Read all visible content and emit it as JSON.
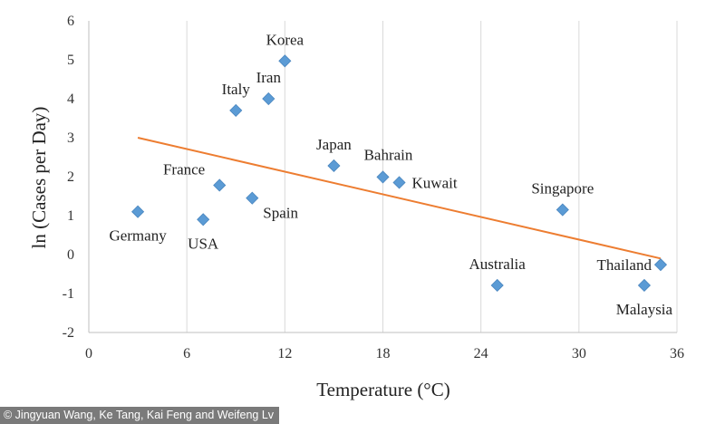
{
  "chart_data": {
    "type": "scatter",
    "title": "",
    "xlabel": "Temperature (°C)",
    "ylabel": "ln (Cases per Day)",
    "xlim": [
      0,
      36
    ],
    "ylim": [
      -2,
      6
    ],
    "xticks": [
      0,
      6,
      12,
      18,
      24,
      30,
      36
    ],
    "yticks": [
      -2,
      -1,
      0,
      1,
      2,
      3,
      4,
      5,
      6
    ],
    "grid": "vertical",
    "point_color": "#5B9BD5",
    "trendline_color": "#ED7D31",
    "points": [
      {
        "label": "Korea",
        "x": 12,
        "y": 4.97,
        "label_pos": "above"
      },
      {
        "label": "Iran",
        "x": 11,
        "y": 4.0,
        "label_pos": "above"
      },
      {
        "label": "Italy",
        "x": 9,
        "y": 3.7,
        "label_pos": "above"
      },
      {
        "label": "Japan",
        "x": 15,
        "y": 2.28,
        "label_pos": "above"
      },
      {
        "label": "Bahrain",
        "x": 18,
        "y": 1.99,
        "label_pos": "above-right"
      },
      {
        "label": "Kuwait",
        "x": 19,
        "y": 1.85,
        "label_pos": "right"
      },
      {
        "label": "France",
        "x": 8,
        "y": 1.78,
        "label_pos": "above-left"
      },
      {
        "label": "Spain",
        "x": 10,
        "y": 1.45,
        "label_pos": "below-right"
      },
      {
        "label": "Germany",
        "x": 3,
        "y": 1.1,
        "label_pos": "below"
      },
      {
        "label": "USA",
        "x": 7,
        "y": 0.9,
        "label_pos": "below"
      },
      {
        "label": "Singapore",
        "x": 29,
        "y": 1.15,
        "label_pos": "above"
      },
      {
        "label": "Australia",
        "x": 25,
        "y": -0.79,
        "label_pos": "above"
      },
      {
        "label": "Thailand",
        "x": 35,
        "y": -0.26,
        "label_pos": "left"
      },
      {
        "label": "Malaysia",
        "x": 34,
        "y": -0.79,
        "label_pos": "below"
      }
    ],
    "trendline": {
      "x": [
        3,
        35
      ],
      "y": [
        3.0,
        -0.1
      ]
    }
  },
  "credit": "© Jingyuan Wang, Ke Tang, Kai Feng and Weifeng Lv"
}
